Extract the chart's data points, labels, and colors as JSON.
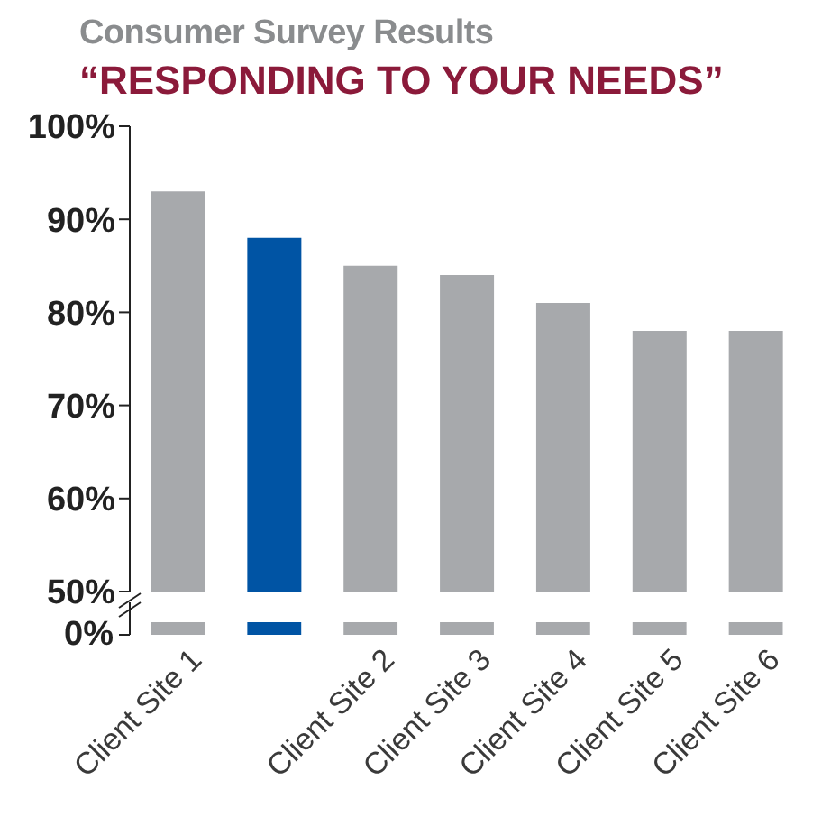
{
  "chart_data": {
    "type": "bar",
    "title": "Consumer Survey Results",
    "subtitle": "“RESPONDING TO YOUR NEEDS”",
    "categories": [
      "Client Site 1",
      null,
      "Client Site 2",
      "Client Site 3",
      "Client Site 4",
      "Client Site 5",
      "Client Site 6"
    ],
    "values": [
      93,
      88,
      85,
      84,
      81,
      78,
      78
    ],
    "colors": [
      "#a7a9ac",
      "#0054a4",
      "#a7a9ac",
      "#a7a9ac",
      "#a7a9ac",
      "#a7a9ac",
      "#a7a9ac"
    ],
    "ylim": [
      50,
      100
    ],
    "yticks": [
      {
        "value": 50,
        "label": "50%"
      },
      {
        "value": 60,
        "label": "60%"
      },
      {
        "value": 70,
        "label": "70%"
      },
      {
        "value": 80,
        "label": "80%"
      },
      {
        "value": 90,
        "label": "90%"
      },
      {
        "value": 100,
        "label": "100%"
      }
    ],
    "annotations": [
      "0%"
    ],
    "grid": false,
    "legend": false
  }
}
